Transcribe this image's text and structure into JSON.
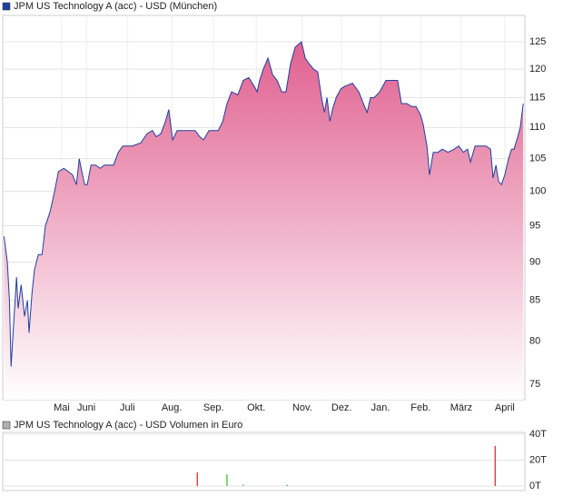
{
  "chart_data": [
    {
      "type": "area",
      "log_y": true,
      "grid": true,
      "area_colors": [
        "#e0608f",
        "#ffffff"
      ],
      "x": [
        -0.97,
        -0.89,
        -0.84,
        -0.8,
        -0.74,
        -0.67,
        -0.63,
        -0.56,
        -0.48,
        -0.41,
        -0.37,
        -0.3,
        -0.24,
        -0.15,
        -0.06,
        0.02,
        0.13,
        0.24,
        0.33,
        0.46,
        0.57,
        0.67,
        0.76,
        0.83,
        0.89,
        0.96,
        1.02,
        1.11,
        1.22,
        1.33,
        1.43,
        1.54,
        1.65,
        1.76,
        1.87,
        2.09,
        2.3,
        2.45,
        2.58,
        2.67,
        2.78,
        2.89,
        2.97,
        3.06,
        3.17,
        3.39,
        3.6,
        3.71,
        3.8,
        3.93,
        4.15,
        4.26,
        4.36,
        4.47,
        4.62,
        4.75,
        4.88,
        5.01,
        5.08,
        5.14,
        5.23,
        5.34,
        5.45,
        5.56,
        5.67,
        5.77,
        5.88,
        5.99,
        6.14,
        6.23,
        6.32,
        6.43,
        6.53,
        6.62,
        6.69,
        6.75,
        6.82,
        6.88,
        6.97,
        7.08,
        7.18,
        7.36,
        7.51,
        7.62,
        7.71,
        7.79,
        7.88,
        8.01,
        8.16,
        8.31,
        8.44,
        8.53,
        8.66,
        8.77,
        8.88,
        8.99,
        9.05,
        9.14,
        9.2,
        9.29,
        9.4,
        9.51,
        9.64,
        9.79,
        9.9,
        10.01,
        10.11,
        10.18,
        10.29,
        10.44,
        10.55,
        10.66,
        10.72,
        10.79,
        10.85,
        10.92,
        11.0,
        11.09,
        11.16,
        11.22,
        11.31,
        11.37,
        11.44
      ],
      "series": [
        {
          "name": "JPM US Technology A (acc) - USD (München)",
          "color": "#1f3f9f",
          "values": [
            93.5,
            90,
            85,
            77,
            82,
            88,
            84,
            87,
            83,
            85,
            81,
            86,
            89,
            91,
            91,
            95,
            97,
            100,
            103,
            103.5,
            103,
            102.5,
            101,
            105,
            103,
            101,
            101,
            104,
            104,
            103.5,
            104,
            104,
            104,
            106,
            107,
            107,
            107.5,
            109,
            109.5,
            108.5,
            109,
            111,
            113,
            108,
            109.5,
            109.5,
            109.5,
            108.5,
            108,
            109.5,
            109.5,
            111,
            114,
            116,
            115.5,
            118,
            118.5,
            117,
            116,
            118,
            120,
            122,
            119,
            118,
            116,
            116,
            121,
            124,
            125,
            122,
            121,
            120,
            119.5,
            115,
            112.5,
            115,
            111,
            113,
            115,
            116.5,
            117,
            117.5,
            116,
            114,
            112.5,
            115,
            115,
            116,
            118,
            118,
            118,
            114,
            114,
            113.5,
            113.5,
            112,
            110.5,
            107,
            102.5,
            106,
            106,
            106.5,
            106,
            106.5,
            107,
            106,
            106.5,
            104.5,
            107,
            107,
            107,
            106.5,
            102,
            104,
            101.5,
            101,
            102.5,
            105,
            106.5,
            106.5,
            108.5,
            110,
            114
          ]
        }
      ],
      "xlim": [
        -1.0,
        11.48
      ],
      "xticks": [
        {
          "value": 0.41,
          "label": "Mai"
        },
        {
          "value": 1,
          "label": "Juni"
        },
        {
          "value": 1.98,
          "label": "Juli"
        },
        {
          "value": 3.04,
          "label": "Aug."
        },
        {
          "value": 4.04,
          "label": "Sep."
        },
        {
          "value": 5.06,
          "label": "Okt."
        },
        {
          "value": 6.16,
          "label": "Nov."
        },
        {
          "value": 7.1,
          "label": "Dez."
        },
        {
          "value": 8.03,
          "label": "Jan."
        },
        {
          "value": 8.99,
          "label": "Feb."
        },
        {
          "value": 9.96,
          "label": "März"
        },
        {
          "value": 11.0,
          "label": "April"
        }
      ],
      "ylim": [
        73.3,
        130
      ],
      "yticks": [
        75,
        80,
        85,
        90,
        95,
        100,
        105,
        110,
        115,
        120,
        125
      ]
    },
    {
      "type": "bar",
      "grid": true,
      "x": [
        3.65,
        4.36,
        4.75,
        5.8,
        10.77
      ],
      "series": [
        {
          "name": "JPM US Technology A (acc) - USD Volumen in Euro",
          "color": "#b0b0b0",
          "values": [
            10500,
            9000,
            1000,
            1000,
            31000
          ],
          "colors": [
            "#dd2222",
            "#22bb22",
            "#22bb22",
            "#22bb22",
            "#dd2222"
          ]
        }
      ],
      "xlim": [
        -1.0,
        11.48
      ],
      "ylim": [
        -3500,
        41400
      ],
      "yticks": [
        {
          "value": 0,
          "label": "0T"
        },
        {
          "value": 20000,
          "label": "20T"
        },
        {
          "value": 40000,
          "label": "40T"
        }
      ]
    }
  ]
}
